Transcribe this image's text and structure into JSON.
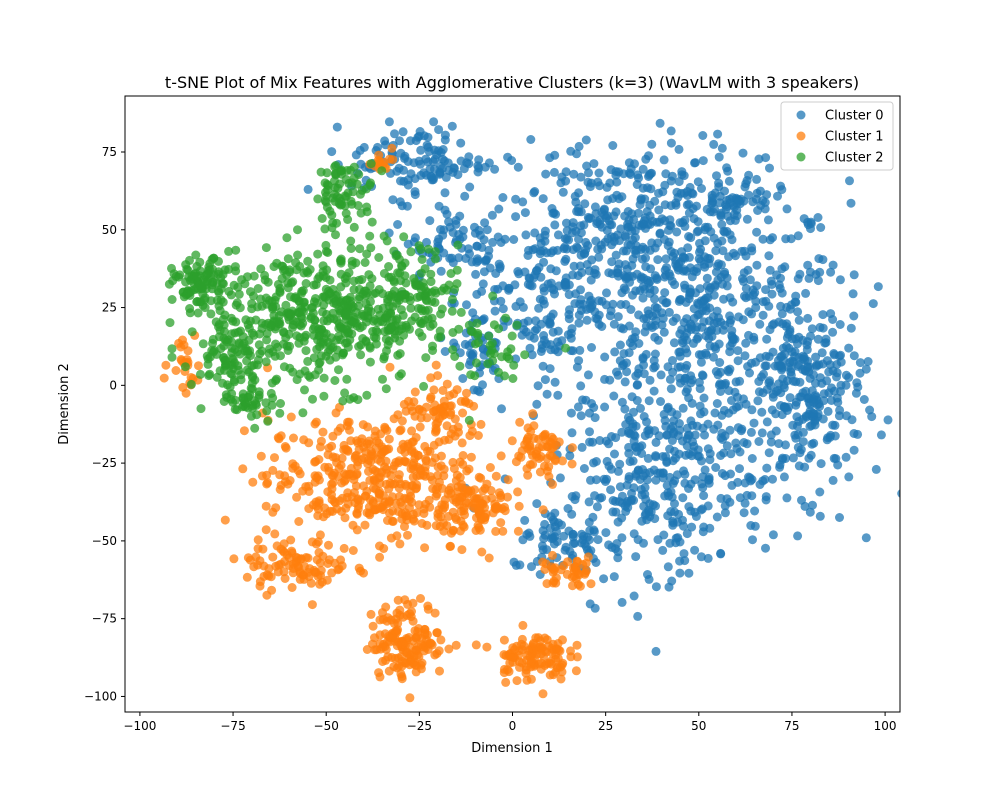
{
  "chart_data": {
    "type": "scatter",
    "title": "t-SNE Plot of Mix Features with Agglomerative Clusters (k=3) (WavLM with 3 speakers)",
    "xlabel": "Dimension 1",
    "ylabel": "Dimension 2",
    "xlim": [
      -104,
      104
    ],
    "ylim": [
      -105,
      93
    ],
    "xticks": [
      -100,
      -75,
      -50,
      -25,
      0,
      25,
      50,
      75,
      100
    ],
    "yticks": [
      -100,
      -75,
      -50,
      -25,
      0,
      25,
      50,
      75
    ],
    "grid": false,
    "legend_position": "top-right",
    "series": [
      {
        "name": "Cluster 0",
        "color": "#1f77b4",
        "regions": [
          {
            "cx": 50,
            "cy": 15,
            "rx": 40,
            "ry": 50,
            "n": 700
          },
          {
            "cx": 30,
            "cy": 55,
            "rx": 30,
            "ry": 25,
            "n": 250
          },
          {
            "cx": 40,
            "cy": -35,
            "rx": 28,
            "ry": 25,
            "n": 250
          },
          {
            "cx": 80,
            "cy": -5,
            "rx": 14,
            "ry": 30,
            "n": 200
          },
          {
            "cx": 10,
            "cy": 30,
            "rx": 22,
            "ry": 25,
            "n": 180
          },
          {
            "cx": -25,
            "cy": 72,
            "rx": 18,
            "ry": 12,
            "n": 120
          },
          {
            "cx": -15,
            "cy": 45,
            "rx": 18,
            "ry": 15,
            "n": 80
          },
          {
            "cx": 15,
            "cy": -50,
            "rx": 15,
            "ry": 10,
            "n": 70
          },
          {
            "cx": 60,
            "cy": 60,
            "rx": 10,
            "ry": 8,
            "n": 50
          },
          {
            "cx": -10,
            "cy": 10,
            "rx": 8,
            "ry": 15,
            "n": 40
          }
        ]
      },
      {
        "name": "Cluster 1",
        "color": "#ff7f0e",
        "regions": [
          {
            "cx": -38,
            "cy": -30,
            "rx": 28,
            "ry": 20,
            "n": 420
          },
          {
            "cx": -28,
            "cy": -82,
            "rx": 10,
            "ry": 12,
            "n": 150
          },
          {
            "cx": 5,
            "cy": -87,
            "rx": 10,
            "ry": 8,
            "n": 110
          },
          {
            "cx": -58,
            "cy": -58,
            "rx": 14,
            "ry": 8,
            "n": 90
          },
          {
            "cx": -10,
            "cy": -40,
            "rx": 10,
            "ry": 10,
            "n": 90
          },
          {
            "cx": -18,
            "cy": -10,
            "rx": 12,
            "ry": 10,
            "n": 70
          },
          {
            "cx": 7,
            "cy": -22,
            "rx": 8,
            "ry": 10,
            "n": 60
          },
          {
            "cx": 15,
            "cy": -60,
            "rx": 8,
            "ry": 5,
            "n": 40
          },
          {
            "cx": -88,
            "cy": 8,
            "rx": 4,
            "ry": 10,
            "n": 25
          },
          {
            "cx": -35,
            "cy": 73,
            "rx": 5,
            "ry": 5,
            "n": 15
          }
        ]
      },
      {
        "name": "Cluster 2",
        "color": "#2ca02c",
        "regions": [
          {
            "cx": -50,
            "cy": 22,
            "rx": 30,
            "ry": 22,
            "n": 520
          },
          {
            "cx": -83,
            "cy": 32,
            "rx": 8,
            "ry": 8,
            "n": 100
          },
          {
            "cx": -75,
            "cy": 10,
            "rx": 10,
            "ry": 12,
            "n": 80
          },
          {
            "cx": -45,
            "cy": 62,
            "rx": 8,
            "ry": 10,
            "n": 70
          },
          {
            "cx": -25,
            "cy": 30,
            "rx": 10,
            "ry": 15,
            "n": 80
          },
          {
            "cx": -70,
            "cy": -5,
            "rx": 8,
            "ry": 6,
            "n": 40
          },
          {
            "cx": -5,
            "cy": 10,
            "rx": 8,
            "ry": 12,
            "n": 30
          }
        ]
      }
    ]
  }
}
